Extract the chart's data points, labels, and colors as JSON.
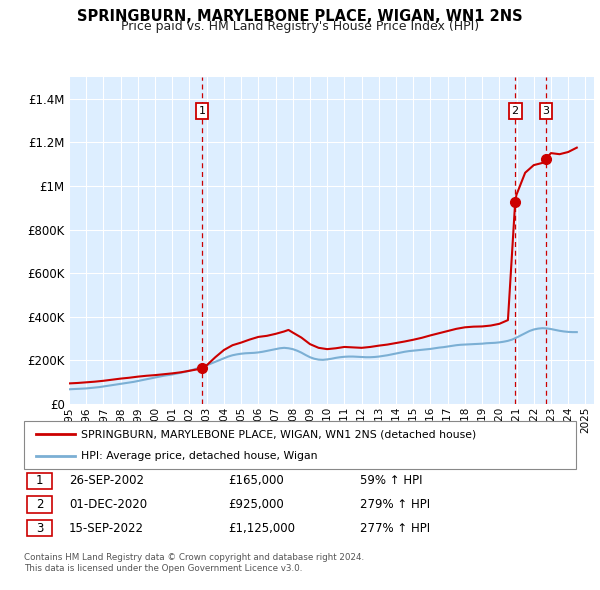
{
  "title": "SPRINGBURN, MARYLEBONE PLACE, WIGAN, WN1 2NS",
  "subtitle": "Price paid vs. HM Land Registry's House Price Index (HPI)",
  "ylim": [
    0,
    1500000
  ],
  "yticks": [
    0,
    200000,
    400000,
    600000,
    800000,
    1000000,
    1200000,
    1400000
  ],
  "ytick_labels": [
    "£0",
    "£200K",
    "£400K",
    "£600K",
    "£800K",
    "£1M",
    "£1.2M",
    "£1.4M"
  ],
  "xlim_start": 1995.0,
  "xlim_end": 2025.5,
  "xtick_years": [
    1995,
    1996,
    1997,
    1998,
    1999,
    2000,
    2001,
    2002,
    2003,
    2004,
    2005,
    2006,
    2007,
    2008,
    2009,
    2010,
    2011,
    2012,
    2013,
    2014,
    2015,
    2016,
    2017,
    2018,
    2019,
    2020,
    2021,
    2022,
    2023,
    2024,
    2025
  ],
  "hpi_color": "#7bafd4",
  "price_color": "#cc0000",
  "dashed_line_color": "#cc0000",
  "background_color": "#ddeeff",
  "grid_color": "#ffffff",
  "sale_points": [
    {
      "date": 2002.73,
      "price": 165000,
      "label": "1"
    },
    {
      "date": 2020.92,
      "price": 925000,
      "label": "2"
    },
    {
      "date": 2022.71,
      "price": 1125000,
      "label": "3"
    }
  ],
  "legend_entries": [
    {
      "label": "SPRINGBURN, MARYLEBONE PLACE, WIGAN, WN1 2NS (detached house)",
      "color": "#cc0000"
    },
    {
      "label": "HPI: Average price, detached house, Wigan",
      "color": "#7bafd4"
    }
  ],
  "table_rows": [
    {
      "num": "1",
      "date": "26-SEP-2002",
      "price": "£165,000",
      "info": "59% ↑ HPI"
    },
    {
      "num": "2",
      "date": "01-DEC-2020",
      "price": "£925,000",
      "info": "279% ↑ HPI"
    },
    {
      "num": "3",
      "date": "15-SEP-2022",
      "price": "£1,125,000",
      "info": "277% ↑ HPI"
    }
  ],
  "footnote": "Contains HM Land Registry data © Crown copyright and database right 2024.\nThis data is licensed under the Open Government Licence v3.0.",
  "hpi_data": {
    "years": [
      1995.0,
      1995.25,
      1995.5,
      1995.75,
      1996.0,
      1996.25,
      1996.5,
      1996.75,
      1997.0,
      1997.25,
      1997.5,
      1997.75,
      1998.0,
      1998.25,
      1998.5,
      1998.75,
      1999.0,
      1999.25,
      1999.5,
      1999.75,
      2000.0,
      2000.25,
      2000.5,
      2000.75,
      2001.0,
      2001.25,
      2001.5,
      2001.75,
      2002.0,
      2002.25,
      2002.5,
      2002.75,
      2003.0,
      2003.25,
      2003.5,
      2003.75,
      2004.0,
      2004.25,
      2004.5,
      2004.75,
      2005.0,
      2005.25,
      2005.5,
      2005.75,
      2006.0,
      2006.25,
      2006.5,
      2006.75,
      2007.0,
      2007.25,
      2007.5,
      2007.75,
      2008.0,
      2008.25,
      2008.5,
      2008.75,
      2009.0,
      2009.25,
      2009.5,
      2009.75,
      2010.0,
      2010.25,
      2010.5,
      2010.75,
      2011.0,
      2011.25,
      2011.5,
      2011.75,
      2012.0,
      2012.25,
      2012.5,
      2012.75,
      2013.0,
      2013.25,
      2013.5,
      2013.75,
      2014.0,
      2014.25,
      2014.5,
      2014.75,
      2015.0,
      2015.25,
      2015.5,
      2015.75,
      2016.0,
      2016.25,
      2016.5,
      2016.75,
      2017.0,
      2017.25,
      2017.5,
      2017.75,
      2018.0,
      2018.25,
      2018.5,
      2018.75,
      2019.0,
      2019.25,
      2019.5,
      2019.75,
      2020.0,
      2020.25,
      2020.5,
      2020.75,
      2021.0,
      2021.25,
      2021.5,
      2021.75,
      2022.0,
      2022.25,
      2022.5,
      2022.75,
      2023.0,
      2023.25,
      2023.5,
      2023.75,
      2024.0,
      2024.25,
      2024.5
    ],
    "values": [
      68000,
      69000,
      70000,
      71000,
      72000,
      74000,
      76000,
      78000,
      81000,
      84000,
      87000,
      90000,
      93000,
      96000,
      99000,
      102000,
      106000,
      110000,
      114000,
      118000,
      122000,
      126000,
      130000,
      133000,
      136000,
      140000,
      144000,
      148000,
      153000,
      159000,
      165000,
      171000,
      178000,
      186000,
      194000,
      202000,
      210000,
      218000,
      224000,
      228000,
      231000,
      233000,
      234000,
      235000,
      237000,
      240000,
      244000,
      248000,
      252000,
      256000,
      258000,
      256000,
      252000,
      245000,
      236000,
      225000,
      215000,
      208000,
      204000,
      203000,
      205000,
      208000,
      212000,
      215000,
      217000,
      218000,
      218000,
      217000,
      216000,
      215000,
      215000,
      216000,
      218000,
      221000,
      224000,
      228000,
      232000,
      236000,
      240000,
      243000,
      245000,
      247000,
      249000,
      251000,
      253000,
      256000,
      259000,
      261000,
      264000,
      267000,
      270000,
      272000,
      273000,
      274000,
      275000,
      276000,
      277000,
      279000,
      280000,
      281000,
      283000,
      286000,
      290000,
      296000,
      305000,
      315000,
      325000,
      335000,
      342000,
      346000,
      348000,
      347000,
      344000,
      340000,
      336000,
      333000,
      331000,
      330000,
      330000
    ]
  },
  "price_line_data": {
    "years": [
      1995.0,
      1995.5,
      1996.0,
      1996.5,
      1997.0,
      1997.5,
      1998.0,
      1998.5,
      1999.0,
      1999.5,
      2000.0,
      2000.5,
      2001.0,
      2001.5,
      2002.0,
      2002.5,
      2002.73,
      2003.0,
      2003.5,
      2004.0,
      2004.5,
      2005.0,
      2005.5,
      2006.0,
      2006.5,
      2007.0,
      2007.5,
      2007.75,
      2008.0,
      2008.5,
      2009.0,
      2009.5,
      2010.0,
      2010.5,
      2011.0,
      2011.5,
      2012.0,
      2012.5,
      2013.0,
      2013.5,
      2014.0,
      2014.5,
      2015.0,
      2015.5,
      2016.0,
      2016.5,
      2017.0,
      2017.5,
      2018.0,
      2018.5,
      2019.0,
      2019.5,
      2020.0,
      2020.5,
      2020.92,
      2021.0,
      2021.5,
      2022.0,
      2022.5,
      2022.71,
      2023.0,
      2023.5,
      2024.0,
      2024.5
    ],
    "values": [
      95000,
      97000,
      100000,
      103000,
      107000,
      112000,
      117000,
      121000,
      126000,
      130000,
      133000,
      137000,
      141000,
      146000,
      153000,
      160000,
      165000,
      178000,
      215000,
      248000,
      270000,
      282000,
      296000,
      308000,
      313000,
      322000,
      333000,
      340000,
      328000,
      305000,
      275000,
      258000,
      252000,
      256000,
      262000,
      260000,
      258000,
      262000,
      268000,
      273000,
      280000,
      287000,
      295000,
      304000,
      315000,
      325000,
      335000,
      345000,
      352000,
      355000,
      356000,
      360000,
      368000,
      385000,
      925000,
      960000,
      1060000,
      1095000,
      1105000,
      1125000,
      1150000,
      1145000,
      1155000,
      1175000
    ]
  }
}
